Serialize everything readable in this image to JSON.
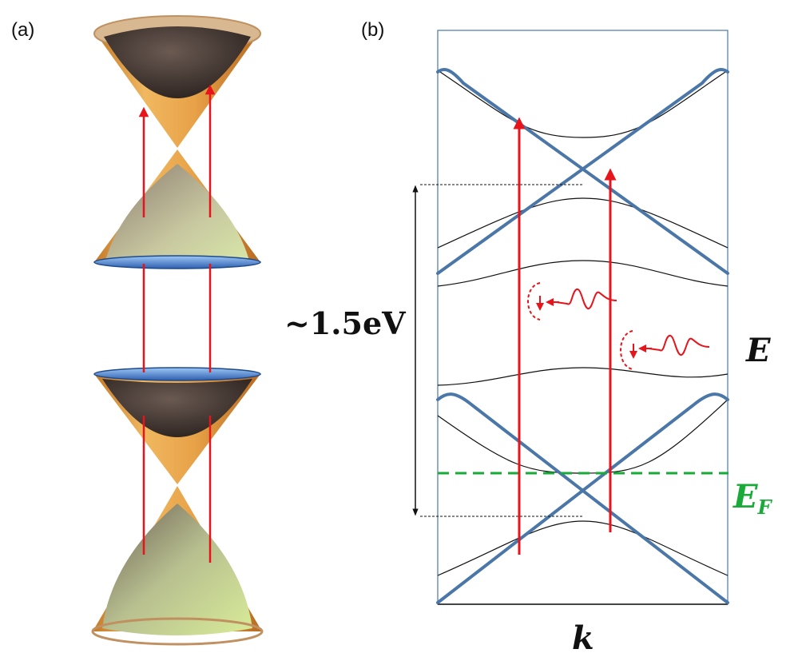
{
  "panel_a": {
    "label": "(a)"
  },
  "panel_b": {
    "label": "(b)",
    "energy_gap_label": "~1.5eV",
    "energy_axis_label": "E",
    "momentum_axis_label": "k",
    "fermi_level_label": "E",
    "fermi_level_subscript": "F"
  },
  "colors": {
    "transition_arrows": "#e8141c",
    "dirac_bands": "#4a77a8",
    "fermi_level": "#1aaa3a",
    "cone_outer": "#e0a050",
    "cone_inner_dark": "#3a2e2a",
    "cone_rim_blue": "#4f84d6",
    "frame": "#4a77a8"
  }
}
